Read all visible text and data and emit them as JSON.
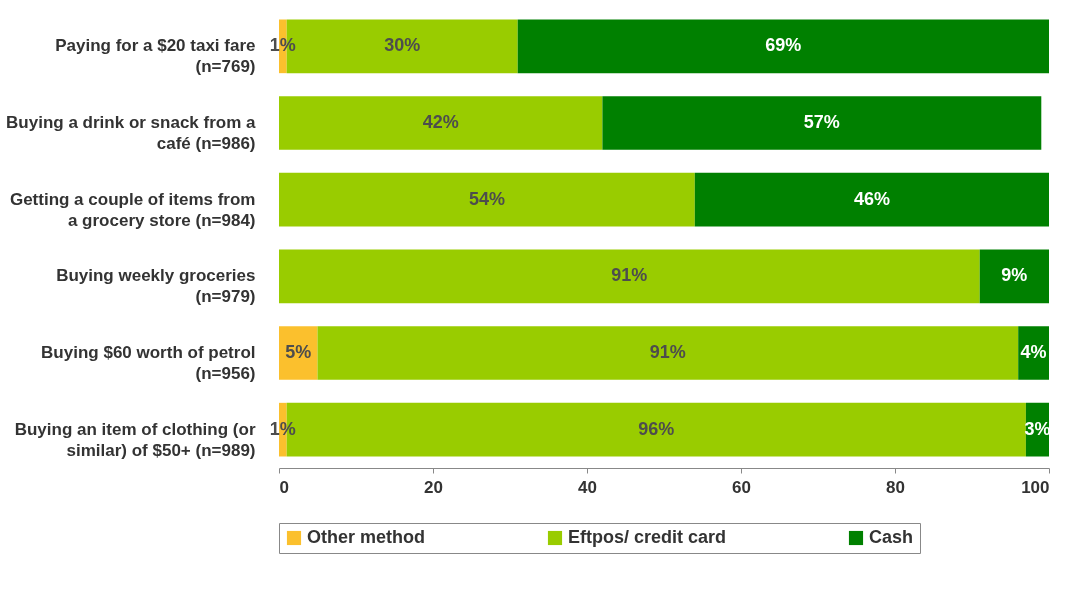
{
  "chart_data": {
    "type": "bar",
    "orientation": "horizontal",
    "stacked": true,
    "categories": [
      "Paying for a $20 taxi fare (n=769)",
      "Buying a drink or snack from a café (n=986)",
      "Getting a couple of items from a grocery store (n=984)",
      "Buying weekly groceries (n=979)",
      "Buying $60 worth of petrol (n=956)",
      "Buying an item of clothing (or similar) of $50+ (n=989)"
    ],
    "series": [
      {
        "name": "Other method",
        "color": "#fbc02d",
        "values": [
          1,
          0,
          0,
          0,
          5,
          1
        ],
        "value_labels": [
          "1%",
          null,
          null,
          null,
          "5%",
          "1%"
        ]
      },
      {
        "name": "Eftpos/ credit card",
        "color": "#99cc00",
        "values": [
          30,
          42,
          54,
          91,
          91,
          96
        ],
        "value_labels": [
          "30%",
          "42%",
          "54%",
          "91%",
          "91%",
          "96%"
        ]
      },
      {
        "name": "Cash",
        "color": "#008000",
        "values": [
          69,
          57,
          46,
          9,
          4,
          3
        ],
        "value_labels": [
          "69%",
          "57%",
          "46%",
          "9%",
          "4%",
          "3%"
        ]
      }
    ],
    "xlim": [
      0,
      100
    ],
    "xticks": [
      0,
      20,
      40,
      60,
      80,
      100
    ],
    "grid": false,
    "legend": "bottom"
  }
}
